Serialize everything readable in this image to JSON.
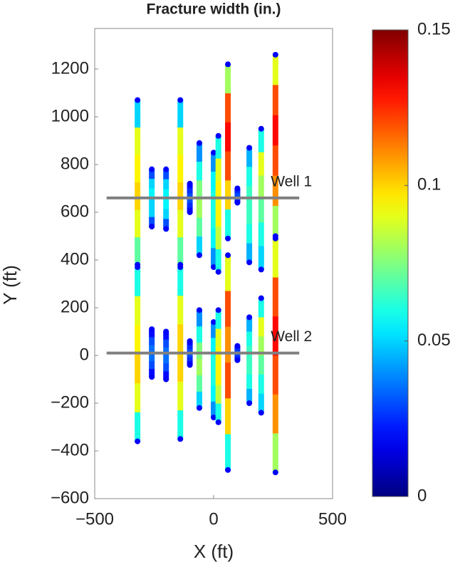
{
  "chart_data": {
    "type": "fracture-map",
    "title": "Fracture width (in.)",
    "x_label": "X (ft)",
    "y_label": "Y (ft)",
    "xlim": [
      -500,
      500
    ],
    "ylim": [
      -600,
      1370
    ],
    "xticks": [
      {
        "value": -500,
        "label": "−500"
      },
      0,
      500
    ],
    "yticks": [
      {
        "value": -600,
        "label": "−600"
      },
      {
        "value": -400,
        "label": "−400"
      },
      {
        "value": -200,
        "label": "−200"
      },
      0,
      200,
      400,
      600,
      800,
      1000,
      1200
    ],
    "clim": [
      0,
      0.15
    ],
    "cticks": [
      0,
      0.05,
      0.1,
      0.15
    ],
    "wells": [
      {
        "label": "Well 1",
        "y": 660,
        "x": [
          -450,
          360
        ]
      },
      {
        "label": "Well 2",
        "y": 10,
        "x": [
          -450,
          360
        ]
      }
    ],
    "fractures": [
      {
        "x": -320,
        "y": [
          1070,
          380
        ],
        "width": [
          0.05,
          0.09,
          0.095,
          0.1,
          0.09,
          0.07
        ]
      },
      {
        "x": -320,
        "y": [
          370,
          -360
        ],
        "width": [
          0.06,
          0.09,
          0.095,
          0.1,
          0.09,
          0.06
        ]
      },
      {
        "x": -260,
        "y": [
          780,
          540
        ],
        "width": [
          0.03,
          0.05,
          0.055,
          0.05,
          0.05,
          0.03
        ]
      },
      {
        "x": -200,
        "y": [
          780,
          530
        ],
        "width": [
          0.03,
          0.05,
          0.055,
          0.055,
          0.05,
          0.03
        ]
      },
      {
        "x": -140,
        "y": [
          1070,
          380
        ],
        "width": [
          0.05,
          0.09,
          0.095,
          0.1,
          0.09,
          0.07
        ]
      },
      {
        "x": -140,
        "y": [
          370,
          -350
        ],
        "width": [
          0.06,
          0.09,
          0.1,
          0.1,
          0.09,
          0.06
        ]
      },
      {
        "x": -100,
        "y": [
          720,
          600
        ],
        "width": [
          0.02,
          0.025,
          0.03,
          0.03,
          0.025,
          0.02
        ]
      },
      {
        "x": -260,
        "y": [
          110,
          -90
        ],
        "width": [
          0.02,
          0.03,
          0.035,
          0.035,
          0.03,
          0.02
        ]
      },
      {
        "x": -200,
        "y": [
          100,
          -100
        ],
        "width": [
          0.02,
          0.03,
          0.035,
          0.035,
          0.03,
          0.02
        ]
      },
      {
        "x": -100,
        "y": [
          60,
          -40
        ],
        "width": [
          0.02,
          0.025,
          0.03,
          0.03,
          0.025,
          0.02
        ]
      },
      {
        "x": -60,
        "y": [
          890,
          420
        ],
        "width": [
          0.04,
          0.06,
          0.075,
          0.08,
          0.07,
          0.05
        ]
      },
      {
        "x": -60,
        "y": [
          190,
          -220
        ],
        "width": [
          0.04,
          0.06,
          0.075,
          0.08,
          0.07,
          0.05
        ]
      },
      {
        "x": 0,
        "y": [
          850,
          370
        ],
        "width": [
          0.04,
          0.055,
          0.06,
          0.06,
          0.055,
          0.04
        ]
      },
      {
        "x": 0,
        "y": [
          140,
          -260
        ],
        "width": [
          0.04,
          0.055,
          0.06,
          0.06,
          0.055,
          0.04
        ]
      },
      {
        "x": 20,
        "y": [
          920,
          350
        ],
        "width": [
          0.06,
          0.09,
          0.095,
          0.095,
          0.085,
          0.06
        ]
      },
      {
        "x": 20,
        "y": [
          190,
          -280
        ],
        "width": [
          0.06,
          0.09,
          0.095,
          0.095,
          0.085,
          0.06
        ]
      },
      {
        "x": 60,
        "y": [
          1220,
          490
        ],
        "width": [
          0.08,
          0.12,
          0.13,
          0.12,
          0.1,
          0.06
        ]
      },
      {
        "x": 60,
        "y": [
          420,
          -480
        ],
        "width": [
          0.09,
          0.12,
          0.11,
          0.12,
          0.1,
          0.06
        ]
      },
      {
        "x": 100,
        "y": [
          700,
          640
        ],
        "width": [
          0.02,
          0.025,
          0.03,
          0.03,
          0.025,
          0.02
        ]
      },
      {
        "x": 100,
        "y": [
          40,
          -20
        ],
        "width": [
          0.02,
          0.025,
          0.03,
          0.03,
          0.025,
          0.02
        ]
      },
      {
        "x": 150,
        "y": [
          870,
          390
        ],
        "width": [
          0.045,
          0.06,
          0.065,
          0.065,
          0.06,
          0.045
        ]
      },
      {
        "x": 150,
        "y": [
          160,
          -200
        ],
        "width": [
          0.045,
          0.06,
          0.065,
          0.065,
          0.06,
          0.045
        ]
      },
      {
        "x": 200,
        "y": [
          950,
          360
        ],
        "width": [
          0.06,
          0.09,
          0.08,
          0.07,
          0.06,
          0.05
        ]
      },
      {
        "x": 200,
        "y": [
          240,
          -240
        ],
        "width": [
          0.06,
          0.09,
          0.08,
          0.07,
          0.06,
          0.05
        ]
      },
      {
        "x": 260,
        "y": [
          1260,
          500
        ],
        "width": [
          0.09,
          0.12,
          0.13,
          0.12,
          0.11,
          0.08
        ]
      },
      {
        "x": 260,
        "y": [
          490,
          -490
        ],
        "width": [
          0.09,
          0.12,
          0.13,
          0.12,
          0.11,
          0.08
        ]
      }
    ]
  }
}
